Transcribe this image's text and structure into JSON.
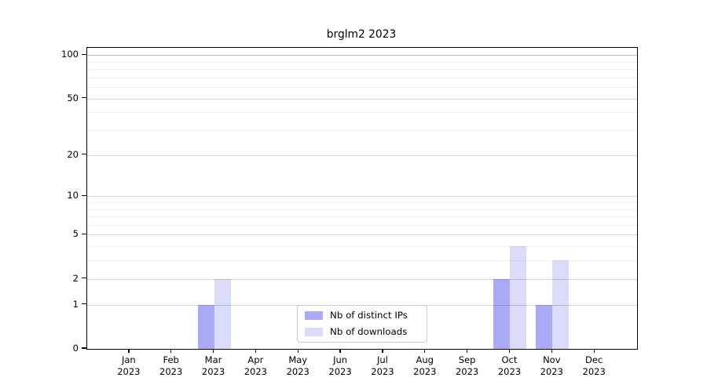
{
  "chart_data": {
    "type": "bar",
    "title": "brglm2 2023",
    "year": "2023",
    "categories": [
      "Jan",
      "Feb",
      "Mar",
      "Apr",
      "May",
      "Jun",
      "Jul",
      "Aug",
      "Sep",
      "Oct",
      "Nov",
      "Dec"
    ],
    "series": [
      {
        "name": "Nb of distinct IPs",
        "color": "#aaaaf6",
        "values": [
          0,
          0,
          1,
          0,
          0,
          0,
          0,
          0,
          0,
          2,
          1,
          0
        ]
      },
      {
        "name": "Nb of downloads",
        "color": "#dbdbfa",
        "values": [
          0,
          0,
          2,
          0,
          0,
          0,
          0,
          0,
          0,
          4,
          3,
          0
        ]
      }
    ],
    "yscale": "log1p",
    "y_major_ticks": [
      0,
      1,
      2,
      5,
      10,
      20,
      50,
      100
    ],
    "y_minor_gridlines": [
      3,
      4,
      6,
      7,
      8,
      9,
      30,
      40,
      60,
      70,
      80,
      90
    ],
    "ylim": [
      0,
      112
    ],
    "xlabel": "",
    "ylabel": "",
    "grid": "horizontal",
    "legend_position": "inside-bottom-center",
    "colors": {
      "axis": "#000000",
      "background": "#ffffff"
    }
  }
}
